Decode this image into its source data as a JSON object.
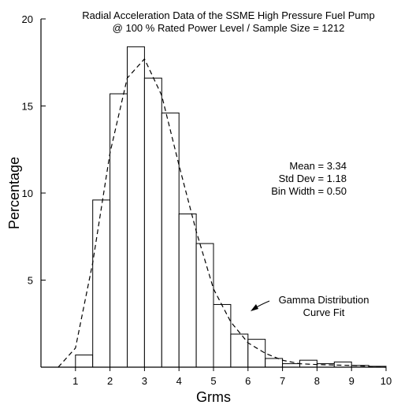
{
  "chart_data": {
    "type": "bar",
    "title_lines": [
      "Radial Acceleration Data of the SSME High Pressure Fuel Pump",
      "@ 100 % Rated Power Level / Sample Size = 1212"
    ],
    "xlabel": "Grms",
    "ylabel": "Percentage",
    "xlim": [
      0,
      10
    ],
    "ylim": [
      0,
      20
    ],
    "x_ticks": [
      1,
      2,
      3,
      4,
      5,
      6,
      7,
      8,
      9,
      10
    ],
    "y_ticks": [
      5,
      10,
      15,
      20
    ],
    "bin_width": 0.5,
    "histogram": [
      {
        "x0": 1.0,
        "value": 0.7
      },
      {
        "x0": 1.5,
        "value": 9.6
      },
      {
        "x0": 2.0,
        "value": 15.7
      },
      {
        "x0": 2.5,
        "value": 18.4
      },
      {
        "x0": 3.0,
        "value": 16.6
      },
      {
        "x0": 3.5,
        "value": 14.6
      },
      {
        "x0": 4.0,
        "value": 8.8
      },
      {
        "x0": 4.5,
        "value": 7.1
      },
      {
        "x0": 5.0,
        "value": 3.6
      },
      {
        "x0": 5.5,
        "value": 1.9
      },
      {
        "x0": 6.0,
        "value": 1.6
      },
      {
        "x0": 6.5,
        "value": 0.5
      },
      {
        "x0": 7.0,
        "value": 0.2
      },
      {
        "x0": 7.5,
        "value": 0.4
      },
      {
        "x0": 8.0,
        "value": 0.2
      },
      {
        "x0": 8.5,
        "value": 0.3
      },
      {
        "x0": 9.0,
        "value": 0.1
      },
      {
        "x0": 9.5,
        "value": 0.05
      }
    ],
    "curve": {
      "style": "dashed",
      "x": [
        0.5,
        1.0,
        1.5,
        2.0,
        2.5,
        3.0,
        3.5,
        4.0,
        4.5,
        5.0,
        5.5,
        6.0,
        6.5,
        7.0,
        7.5,
        8.0,
        9.0,
        10.0
      ],
      "y": [
        0.0,
        1.1,
        6.0,
        12.3,
        16.6,
        17.7,
        15.6,
        11.6,
        7.8,
        4.5,
        2.6,
        1.4,
        0.8,
        0.4,
        0.2,
        0.15,
        0.1,
        0.0
      ]
    },
    "stats": [
      "Mean = 3.34",
      "Std Dev = 1.18",
      "Bin Width = 0.50"
    ],
    "annotation": [
      "Gamma Distribution",
      "Curve Fit"
    ]
  }
}
